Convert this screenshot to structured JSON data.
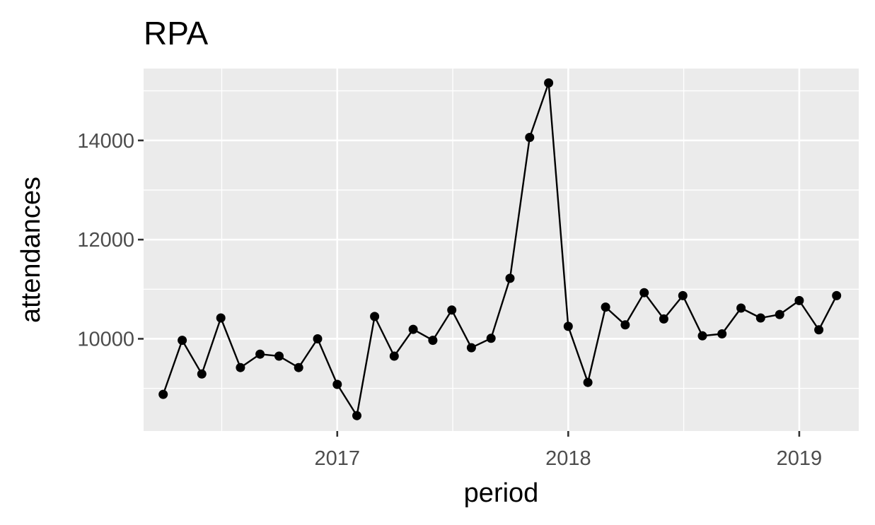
{
  "chart_data": {
    "type": "line",
    "title": "RPA",
    "xlabel": "period",
    "ylabel": "attendances",
    "x_ticks": [
      "2017",
      "2018",
      "2019"
    ],
    "y_ticks": [
      10000,
      12000,
      14000
    ],
    "xlim": [
      "2016-03-01",
      "2019-04-05"
    ],
    "ylim": [
      8140,
      15450
    ],
    "grid": true,
    "legend": "none",
    "background": "#ebebeb",
    "series": [
      {
        "color": "#000000",
        "points": [
          {
            "x": "2016-04-01",
            "y": 8880
          },
          {
            "x": "2016-05-01",
            "y": 9970
          },
          {
            "x": "2016-06-01",
            "y": 9290
          },
          {
            "x": "2016-07-01",
            "y": 10420
          },
          {
            "x": "2016-08-01",
            "y": 9420
          },
          {
            "x": "2016-09-01",
            "y": 9690
          },
          {
            "x": "2016-10-01",
            "y": 9650
          },
          {
            "x": "2016-11-01",
            "y": 9420
          },
          {
            "x": "2016-12-01",
            "y": 10000
          },
          {
            "x": "2017-01-01",
            "y": 9080
          },
          {
            "x": "2017-02-01",
            "y": 8450
          },
          {
            "x": "2017-03-01",
            "y": 10450
          },
          {
            "x": "2017-04-01",
            "y": 9650
          },
          {
            "x": "2017-05-01",
            "y": 10190
          },
          {
            "x": "2017-06-01",
            "y": 9970
          },
          {
            "x": "2017-07-01",
            "y": 10580
          },
          {
            "x": "2017-08-01",
            "y": 9820
          },
          {
            "x": "2017-09-01",
            "y": 10010
          },
          {
            "x": "2017-10-01",
            "y": 11220
          },
          {
            "x": "2017-11-01",
            "y": 14060
          },
          {
            "x": "2017-12-01",
            "y": 15160
          },
          {
            "x": "2018-01-01",
            "y": 10250
          },
          {
            "x": "2018-02-01",
            "y": 9120
          },
          {
            "x": "2018-03-01",
            "y": 10640
          },
          {
            "x": "2018-04-01",
            "y": 10280
          },
          {
            "x": "2018-05-01",
            "y": 10930
          },
          {
            "x": "2018-06-01",
            "y": 10400
          },
          {
            "x": "2018-07-01",
            "y": 10870
          },
          {
            "x": "2018-08-01",
            "y": 10060
          },
          {
            "x": "2018-09-01",
            "y": 10100
          },
          {
            "x": "2018-10-01",
            "y": 10620
          },
          {
            "x": "2018-11-01",
            "y": 10420
          },
          {
            "x": "2018-12-01",
            "y": 10490
          },
          {
            "x": "2019-01-01",
            "y": 10770
          },
          {
            "x": "2019-02-01",
            "y": 10180
          },
          {
            "x": "2019-03-01",
            "y": 10870
          }
        ]
      }
    ]
  }
}
